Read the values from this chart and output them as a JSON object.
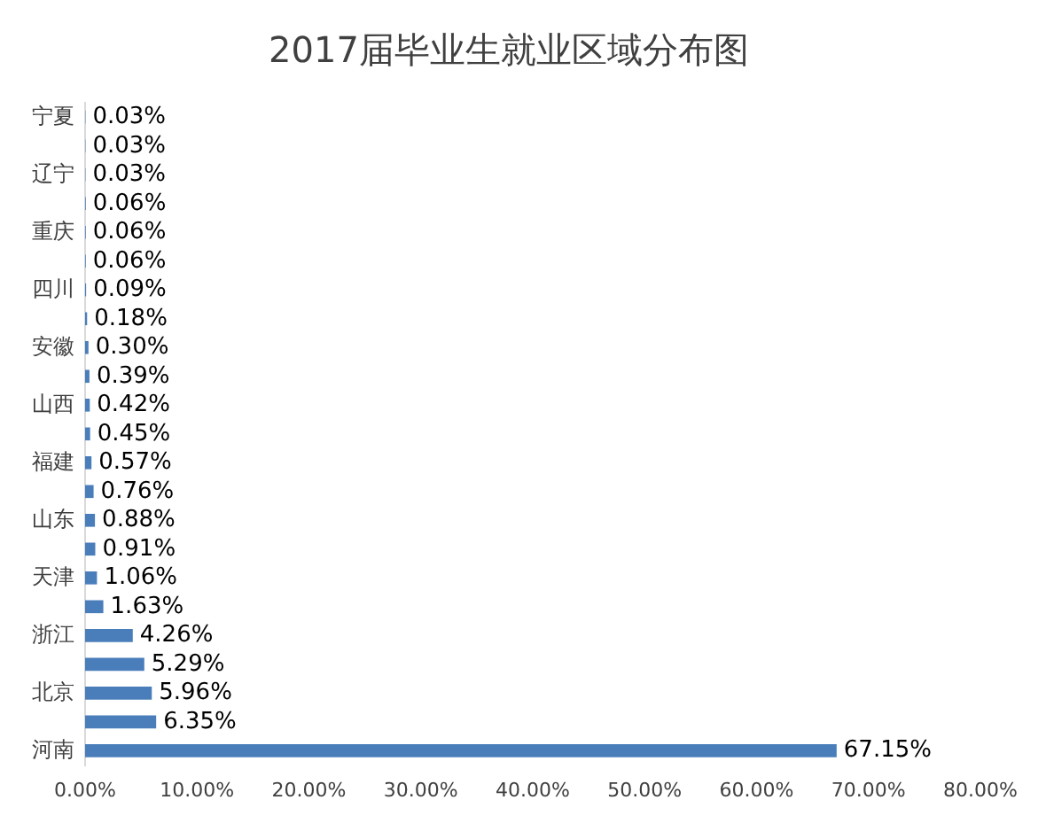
{
  "chart_data": {
    "type": "bar",
    "orientation": "horizontal",
    "title": "2017届毕业生就业区域分布图",
    "categories": [
      "宁夏",
      null,
      "辽宁",
      null,
      "重庆",
      null,
      "四川",
      null,
      "安徽",
      null,
      "山西",
      null,
      "福建",
      null,
      "山东",
      null,
      "天津",
      null,
      "浙江",
      null,
      "北京",
      null,
      "河南"
    ],
    "values": [
      0.03,
      0.03,
      0.03,
      0.06,
      0.06,
      0.06,
      0.09,
      0.18,
      0.3,
      0.39,
      0.42,
      0.45,
      0.57,
      0.76,
      0.88,
      0.91,
      1.06,
      1.63,
      4.26,
      5.29,
      5.96,
      6.35,
      67.15
    ],
    "value_labels": [
      "0.03%",
      "0.03%",
      "0.03%",
      "0.06%",
      "0.06%",
      "0.06%",
      "0.09%",
      "0.18%",
      "0.30%",
      "0.39%",
      "0.42%",
      "0.45%",
      "0.57%",
      "0.76%",
      "0.88%",
      "0.91%",
      "1.06%",
      "1.63%",
      "4.26%",
      "5.29%",
      "5.96%",
      "6.35%",
      "67.15%"
    ],
    "color": "#4a7ebb",
    "xlim": [
      0,
      80
    ],
    "xticks": [
      {
        "value": 0,
        "label": "0.00%"
      },
      {
        "value": 10,
        "label": "10.00%"
      },
      {
        "value": 20,
        "label": "20.00%"
      },
      {
        "value": 30,
        "label": "30.00%"
      },
      {
        "value": 40,
        "label": "40.00%"
      },
      {
        "value": 50,
        "label": "50.00%"
      },
      {
        "value": 60,
        "label": "60.00%"
      },
      {
        "value": 70,
        "label": "70.00%"
      },
      {
        "value": 80,
        "label": "80.00%"
      }
    ],
    "grid": false,
    "legend": false
  }
}
